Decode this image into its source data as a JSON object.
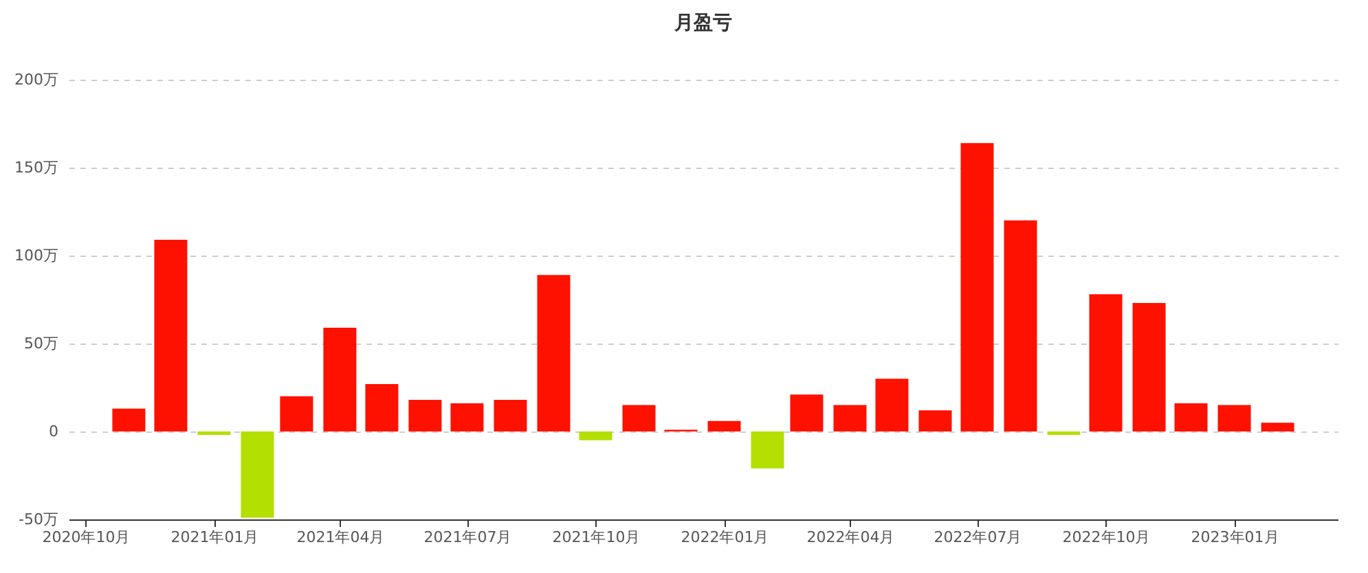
{
  "chart_data": {
    "type": "bar",
    "title": "月盈亏",
    "x": [
      "2020-11",
      "2020-12",
      "2021-01",
      "2021-02",
      "2021-03",
      "2021-04",
      "2021-05",
      "2021-06",
      "2021-07",
      "2021-08",
      "2021-09",
      "2021-10",
      "2021-11",
      "2021-12",
      "2022-01",
      "2022-02",
      "2022-03",
      "2022-04",
      "2022-05",
      "2022-06",
      "2022-07",
      "2022-08",
      "2022-09",
      "2022-10",
      "2022-11",
      "2022-12",
      "2023-01",
      "2023-02"
    ],
    "values": [
      13,
      109,
      -2,
      -49,
      20,
      59,
      27,
      18,
      16,
      18,
      89,
      -5,
      15,
      1,
      6,
      -21,
      21,
      15,
      30,
      12,
      164,
      120,
      -2,
      78,
      73,
      16,
      15,
      5
    ],
    "colors": [
      "#ff1100",
      "#ff1100",
      "#b3e000",
      "#b3e000",
      "#ff1100",
      "#ff1100",
      "#ff1100",
      "#ff1100",
      "#ff1100",
      "#ff1100",
      "#ff1100",
      "#b3e000",
      "#ff1100",
      "#ff1100",
      "#ff1100",
      "#b3e000",
      "#ff1100",
      "#ff1100",
      "#ff1100",
      "#ff1100",
      "#ff1100",
      "#ff1100",
      "#b3e000",
      "#ff1100",
      "#ff1100",
      "#ff1100",
      "#ff1100",
      "#ff1100"
    ],
    "xlim": [
      "2020-09-19",
      "2023-03-16"
    ],
    "xticks": [
      {
        "value": "2020-10",
        "label": "2020年10月"
      },
      {
        "value": "2021-01",
        "label": "2021年01月"
      },
      {
        "value": "2021-04",
        "label": "2021年04月"
      },
      {
        "value": "2021-07",
        "label": "2021年07月"
      },
      {
        "value": "2021-10",
        "label": "2021年10月"
      },
      {
        "value": "2022-01",
        "label": "2022年01月"
      },
      {
        "value": "2022-04",
        "label": "2022年04月"
      },
      {
        "value": "2022-07",
        "label": "2022年07月"
      },
      {
        "value": "2022-10",
        "label": "2022年10月"
      },
      {
        "value": "2023-01",
        "label": "2023年01月"
      }
    ],
    "ylim": [
      -50,
      200
    ],
    "yticks": [
      {
        "value": -50,
        "label": "-50万"
      },
      {
        "value": 0,
        "label": "0"
      },
      {
        "value": 50,
        "label": "50万"
      },
      {
        "value": 100,
        "label": "100万"
      },
      {
        "value": 150,
        "label": "150万"
      },
      {
        "value": 200,
        "label": "200万"
      }
    ],
    "grid": "y"
  }
}
